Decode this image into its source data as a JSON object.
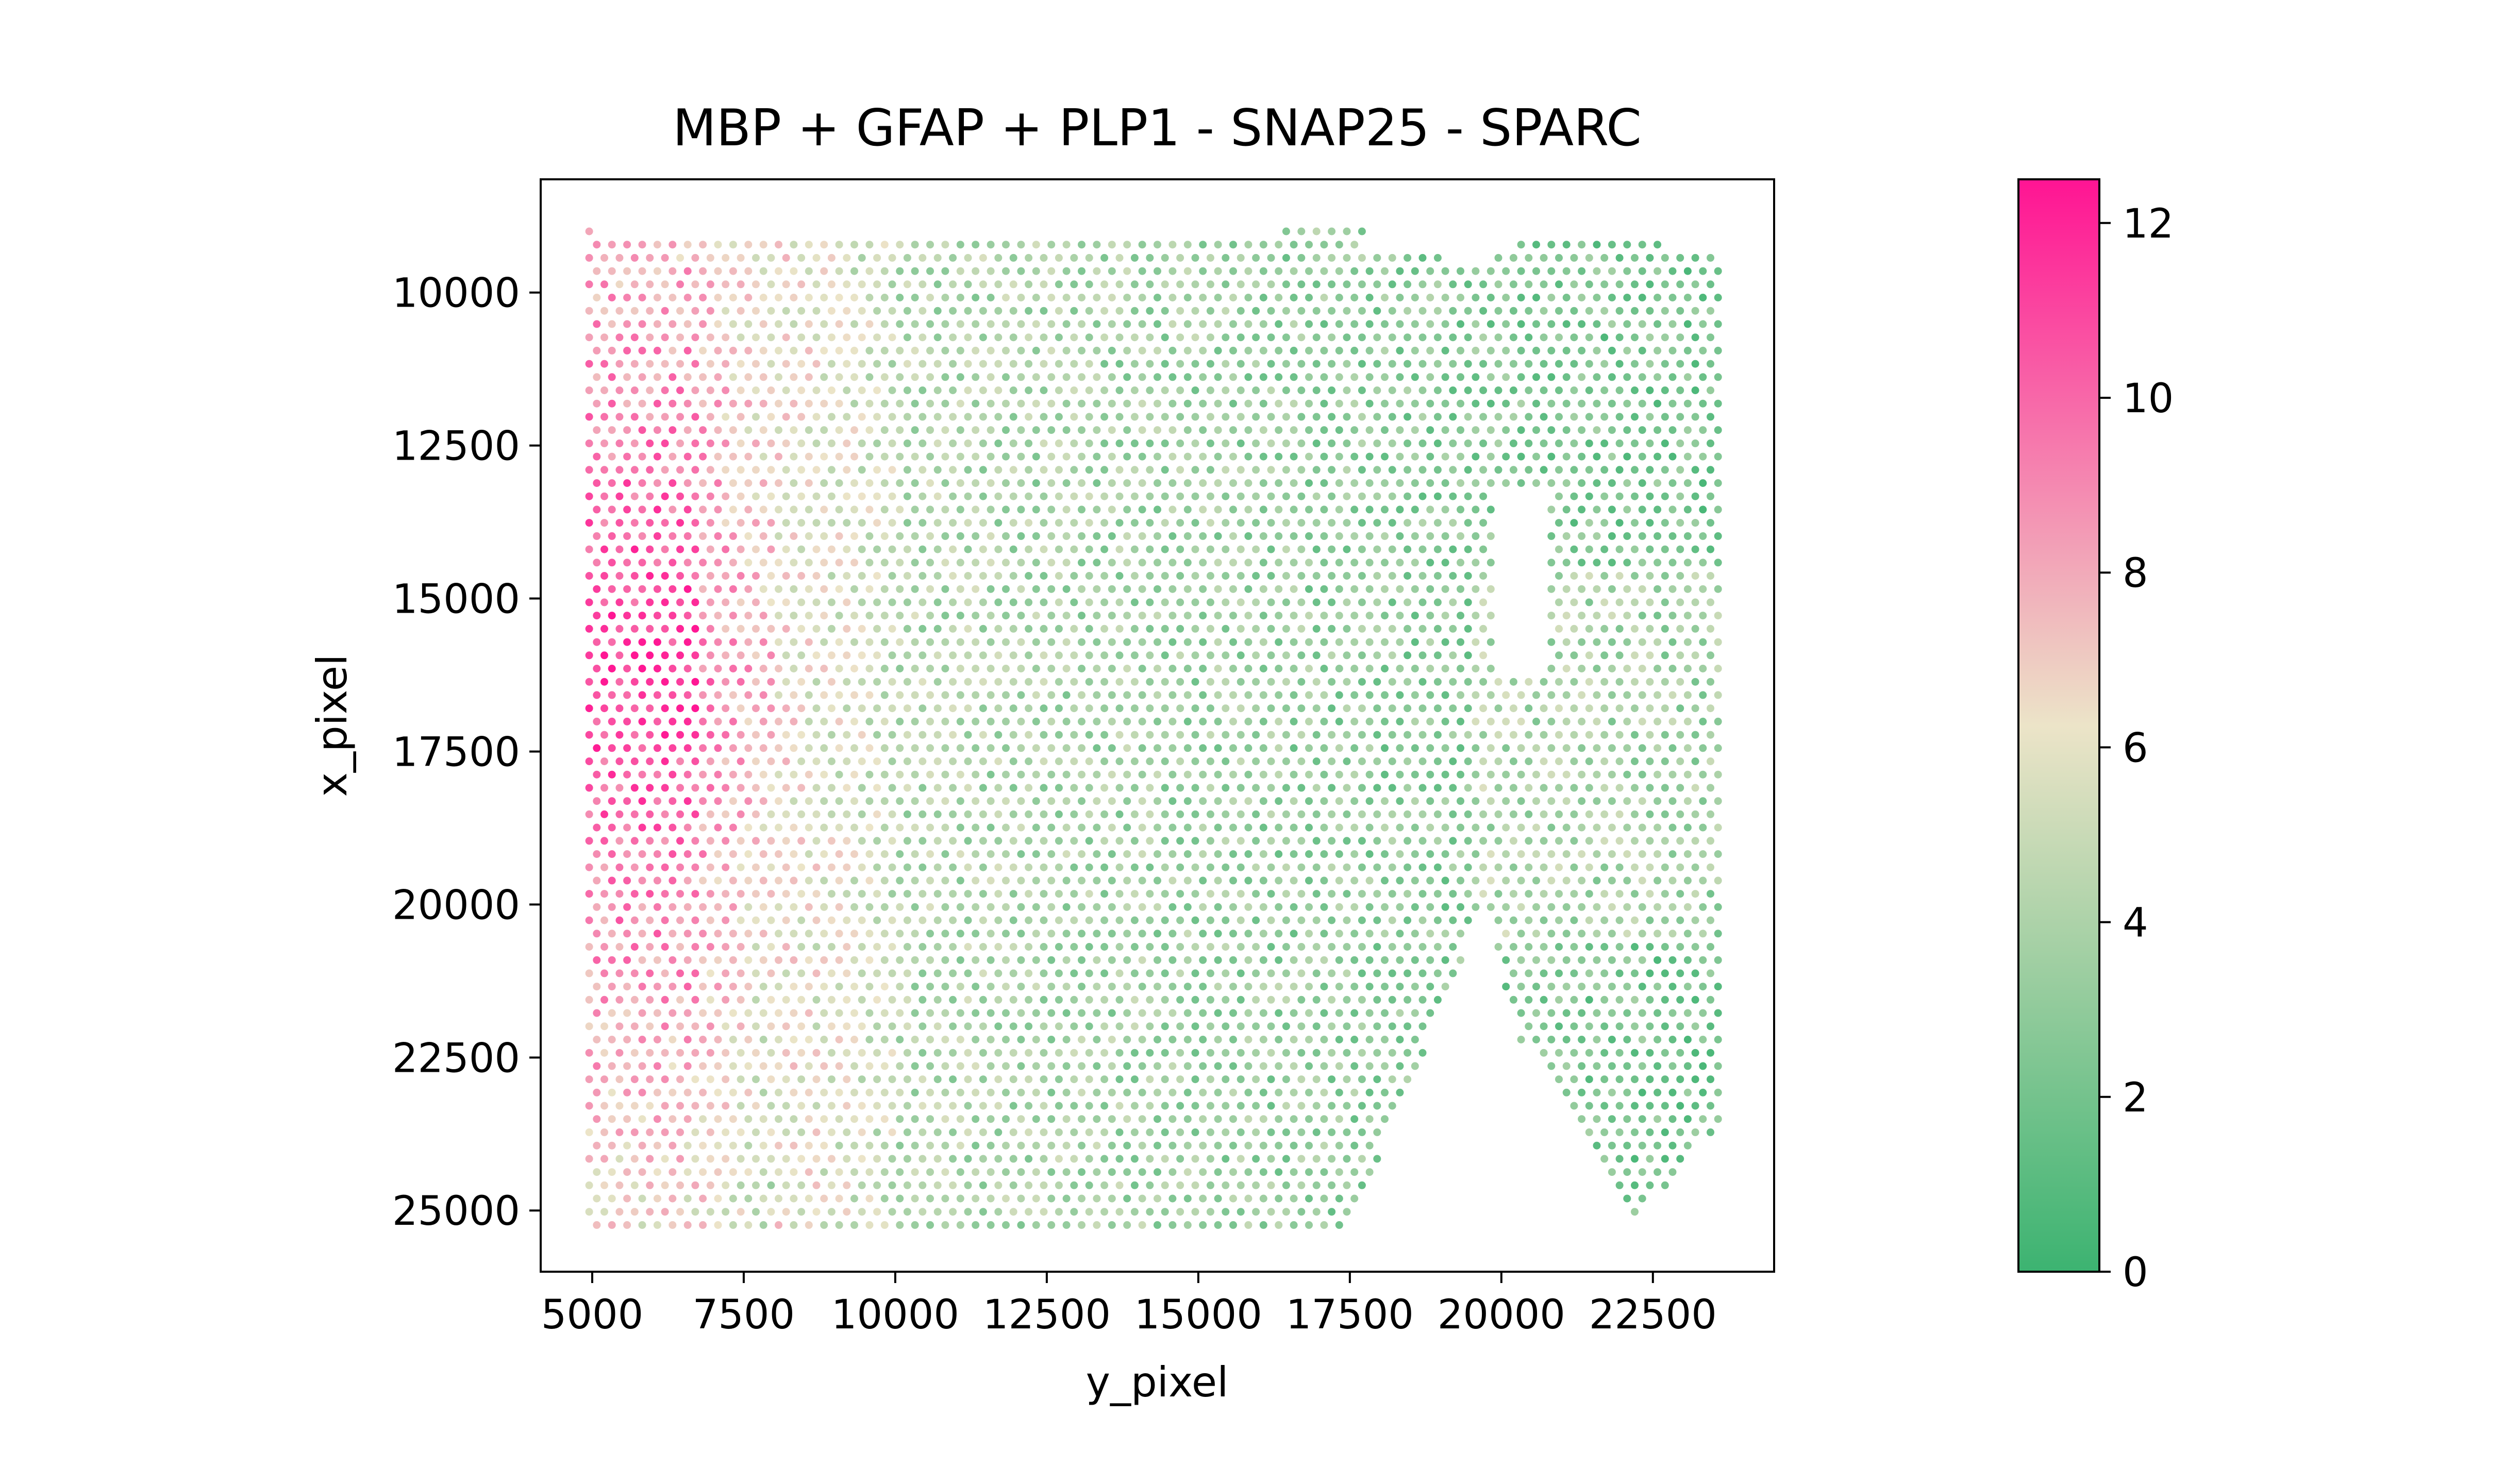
{
  "chart_data": {
    "type": "scatter",
    "title": "MBP + GFAP + PLP1 - SNAP25 - SPARC",
    "xlabel": "y_pixel",
    "ylabel": "x_pixel",
    "xlim": [
      4150,
      24500
    ],
    "ylim": [
      26000,
      8150
    ],
    "y_inverted": true,
    "xticks": [
      5000,
      7500,
      10000,
      12500,
      15000,
      17500,
      20000,
      22500
    ],
    "yticks": [
      10000,
      12500,
      15000,
      17500,
      20000,
      22500,
      25000
    ],
    "grid": false,
    "spot_spacing": 250,
    "colorbar": {
      "min": 0,
      "max": 12.5,
      "ticks": [
        0,
        2,
        4,
        6,
        8,
        10,
        12
      ],
      "colormap": [
        "#3cb371",
        "#ece4c8",
        "#ff1493"
      ],
      "colormap_stops": [
        0,
        0.5,
        1
      ],
      "position": "right"
    },
    "tissue_region": {
      "description_values": "spots cover y_pixel 4900-23600, x_pixel 9000-25200",
      "holes": [
        {
          "kind": "hole",
          "y_range": [
            19850,
            20800
          ],
          "x_range": [
            13200,
            16300
          ]
        },
        {
          "kind": "notch",
          "points": [
            [
              17500,
              25250
            ],
            [
              19400,
              20800
            ],
            [
              19700,
              20000
            ],
            [
              20400,
              22600
            ],
            [
              18900,
              25250
            ]
          ]
        },
        {
          "kind": "notch",
          "points": [
            [
              19600,
              22400
            ],
            [
              20500,
              22300
            ],
            [
              22100,
              25250
            ],
            [
              19000,
              25250
            ]
          ]
        }
      ]
    },
    "value_gradient": {
      "description_values": "values are ~10-12.5 near y_pixel 5000-7000 on the left, ~6-8 around 8000-10000, falling to ~1-4 over most of the area to the right"
    }
  }
}
